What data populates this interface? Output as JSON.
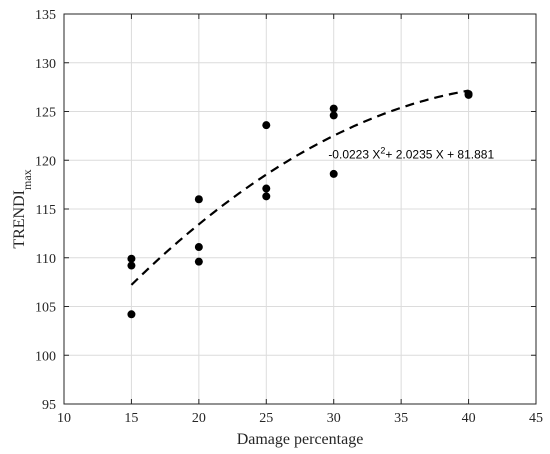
{
  "chart_data": {
    "type": "scatter",
    "xlabel": "Damage percentage",
    "ylabel_main": "TRENDI",
    "ylabel_sub": "max",
    "xlim": [
      10,
      45
    ],
    "ylim": [
      95,
      135
    ],
    "xticks": [
      10,
      15,
      20,
      25,
      30,
      35,
      40,
      45
    ],
    "yticks": [
      95,
      100,
      105,
      110,
      115,
      120,
      125,
      130,
      135
    ],
    "grid": true,
    "points": [
      {
        "x": 15,
        "y": 109.9
      },
      {
        "x": 15,
        "y": 109.2
      },
      {
        "x": 15,
        "y": 104.2
      },
      {
        "x": 20,
        "y": 116.0
      },
      {
        "x": 20,
        "y": 111.1
      },
      {
        "x": 20,
        "y": 109.6
      },
      {
        "x": 25,
        "y": 123.6
      },
      {
        "x": 25,
        "y": 117.1
      },
      {
        "x": 25,
        "y": 116.3
      },
      {
        "x": 30,
        "y": 125.3
      },
      {
        "x": 30,
        "y": 124.6
      },
      {
        "x": 30,
        "y": 118.6
      },
      {
        "x": 40,
        "y": 126.8
      },
      {
        "x": 40,
        "y": 126.7
      }
    ],
    "fit": {
      "style": "dashed",
      "a": -0.0223,
      "b": 2.0235,
      "c": 81.881,
      "x_range": [
        15,
        40
      ],
      "equation_parts": {
        "lead": "-0.0223 X",
        "exp": "2",
        "rest": "+ 2.0235 X + 81.881"
      }
    },
    "colors": {
      "points": "#000000",
      "grid": "#dcdcdc",
      "axes": "#262626"
    }
  }
}
